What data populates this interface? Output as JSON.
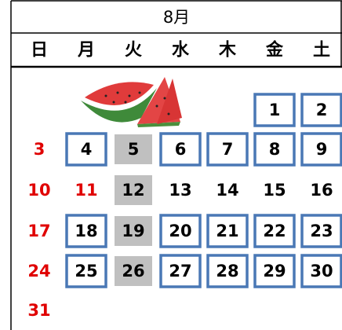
{
  "calendar": {
    "month": "8月",
    "weekdays": [
      "日",
      "月",
      "火",
      "水",
      "木",
      "金",
      "土"
    ],
    "weeks": [
      [
        null,
        null,
        null,
        null,
        null,
        {
          "day": 1,
          "style": "boxed"
        },
        {
          "day": 2,
          "style": "boxed"
        }
      ],
      [
        {
          "day": 3,
          "color": "#e00000"
        },
        {
          "day": 4,
          "style": "boxed"
        },
        {
          "day": 5,
          "style": "gray"
        },
        {
          "day": 6,
          "style": "boxed"
        },
        {
          "day": 7,
          "style": "boxed"
        },
        {
          "day": 8,
          "style": "boxed"
        },
        {
          "day": 9,
          "style": "boxed"
        }
      ],
      [
        {
          "day": 10,
          "color": "#e00000"
        },
        {
          "day": 11,
          "color": "#e00000"
        },
        {
          "day": 12,
          "style": "gray"
        },
        {
          "day": 13
        },
        {
          "day": 14
        },
        {
          "day": 15
        },
        {
          "day": 16
        }
      ],
      [
        {
          "day": 17,
          "color": "#e00000"
        },
        {
          "day": 18,
          "style": "boxed"
        },
        {
          "day": 19,
          "style": "gray"
        },
        {
          "day": 20,
          "style": "boxed"
        },
        {
          "day": 21,
          "style": "boxed"
        },
        {
          "day": 22,
          "style": "boxed"
        },
        {
          "day": 23,
          "style": "boxed"
        }
      ],
      [
        {
          "day": 24,
          "color": "#e00000"
        },
        {
          "day": 25,
          "style": "boxed"
        },
        {
          "day": 26,
          "style": "gray"
        },
        {
          "day": 27,
          "style": "boxed"
        },
        {
          "day": 28,
          "style": "boxed"
        },
        {
          "day": 29,
          "style": "boxed"
        },
        {
          "day": 30,
          "style": "boxed"
        }
      ],
      [
        {
          "day": 31,
          "color": "#e00000"
        },
        null,
        null,
        null,
        null,
        null,
        null
      ]
    ]
  }
}
